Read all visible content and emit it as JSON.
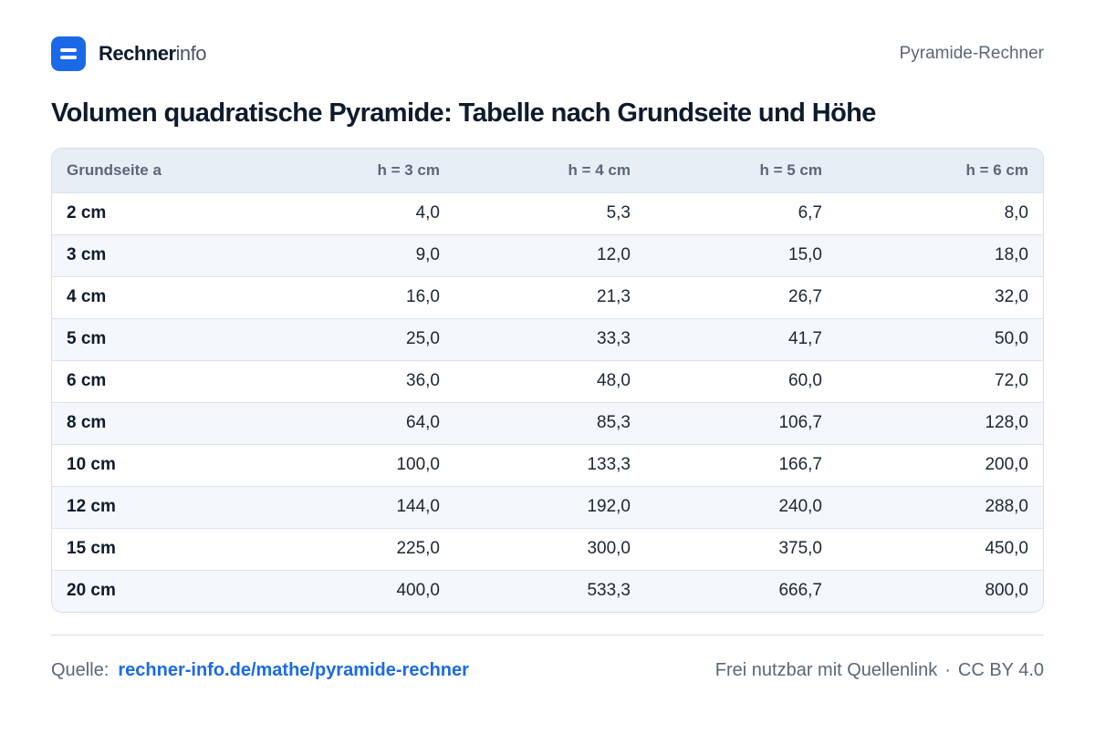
{
  "header": {
    "brand_strong": "Rechner",
    "brand_light": "info",
    "page_label": "Pyramide-Rechner"
  },
  "title": "Volumen quadratische Pyramide: Tabelle nach Grundseite und Höhe",
  "table": {
    "columns": [
      "Grundseite a",
      "h = 3 cm",
      "h = 4 cm",
      "h = 5 cm",
      "h = 6 cm"
    ],
    "rows": [
      [
        "2 cm",
        "4,0",
        "5,3",
        "6,7",
        "8,0"
      ],
      [
        "3 cm",
        "9,0",
        "12,0",
        "15,0",
        "18,0"
      ],
      [
        "4 cm",
        "16,0",
        "21,3",
        "26,7",
        "32,0"
      ],
      [
        "5 cm",
        "25,0",
        "33,3",
        "41,7",
        "50,0"
      ],
      [
        "6 cm",
        "36,0",
        "48,0",
        "60,0",
        "72,0"
      ],
      [
        "8 cm",
        "64,0",
        "85,3",
        "106,7",
        "128,0"
      ],
      [
        "10 cm",
        "100,0",
        "133,3",
        "166,7",
        "200,0"
      ],
      [
        "12 cm",
        "144,0",
        "192,0",
        "240,0",
        "288,0"
      ],
      [
        "15 cm",
        "225,0",
        "300,0",
        "375,0",
        "450,0"
      ],
      [
        "20 cm",
        "400,0",
        "533,3",
        "666,7",
        "800,0"
      ]
    ]
  },
  "footer": {
    "source_label": "Quelle:",
    "source_link": "rechner-info.de/mathe/pyramide-rechner",
    "license_text": "Frei nutzbar mit Quellenlink",
    "separator": "·",
    "license_name": "CC BY 4.0"
  },
  "colors": {
    "accent": "#1a6ae8",
    "text_dark": "#0f1b2d",
    "text_muted": "#5b6778",
    "header_bg": "#e8eef6",
    "stripe_bg": "#f4f7fb",
    "border": "#d5dde8"
  },
  "icons": {
    "logo": "menu-lines-icon"
  }
}
